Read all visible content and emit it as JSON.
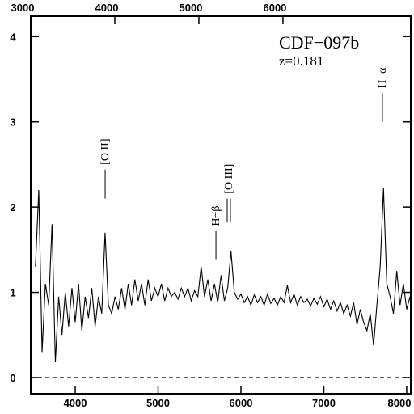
{
  "chart_data": {
    "type": "line",
    "title": "CDF−097b",
    "subtitle": "z=0.181",
    "x": [
      3520,
      3560,
      3600,
      3640,
      3680,
      3720,
      3760,
      3800,
      3840,
      3880,
      3920,
      3960,
      4000,
      4040,
      4080,
      4120,
      4160,
      4200,
      4240,
      4280,
      4320,
      4360,
      4400,
      4440,
      4480,
      4520,
      4560,
      4600,
      4640,
      4680,
      4720,
      4760,
      4800,
      4840,
      4880,
      4920,
      4960,
      5000,
      5040,
      5080,
      5120,
      5160,
      5200,
      5240,
      5280,
      5320,
      5360,
      5400,
      5440,
      5480,
      5520,
      5560,
      5600,
      5640,
      5680,
      5720,
      5760,
      5800,
      5840,
      5880,
      5920,
      5960,
      6000,
      6040,
      6080,
      6120,
      6160,
      6200,
      6240,
      6280,
      6320,
      6360,
      6400,
      6440,
      6480,
      6520,
      6560,
      6600,
      6640,
      6680,
      6720,
      6760,
      6800,
      6840,
      6880,
      6920,
      6960,
      7000,
      7040,
      7080,
      7120,
      7160,
      7200,
      7240,
      7280,
      7320,
      7360,
      7400,
      7440,
      7480,
      7520,
      7560,
      7600,
      7640,
      7680,
      7720,
      7760,
      7800,
      7840,
      7880,
      7920,
      7960,
      8000,
      8040
    ],
    "values": [
      1.3,
      2.2,
      0.3,
      1.1,
      0.85,
      1.8,
      0.18,
      0.95,
      0.5,
      1.0,
      0.6,
      1.05,
      0.65,
      1.1,
      0.55,
      0.95,
      0.7,
      1.05,
      0.6,
      0.95,
      0.75,
      1.7,
      0.85,
      0.75,
      0.95,
      0.8,
      1.05,
      0.8,
      1.1,
      0.85,
      1.15,
      0.9,
      1.1,
      0.85,
      1.15,
      0.9,
      1.05,
      0.95,
      1.1,
      0.9,
      1.05,
      0.95,
      1.0,
      0.92,
      1.05,
      0.95,
      1.05,
      0.9,
      1.02,
      0.95,
      1.3,
      0.95,
      1.15,
      0.9,
      1.1,
      0.88,
      1.2,
      0.9,
      1.05,
      1.48,
      1.0,
      0.92,
      0.98,
      0.88,
      0.95,
      0.85,
      0.97,
      0.88,
      0.95,
      0.85,
      0.98,
      0.87,
      0.93,
      0.85,
      0.95,
      0.88,
      1.08,
      0.88,
      0.98,
      0.85,
      0.95,
      0.88,
      0.92,
      0.84,
      0.93,
      0.86,
      0.95,
      0.83,
      0.92,
      0.8,
      0.9,
      0.78,
      0.88,
      0.75,
      0.85,
      0.72,
      0.88,
      0.62,
      0.8,
      0.65,
      0.55,
      0.75,
      0.38,
      0.85,
      1.3,
      2.22,
      1.1,
      0.95,
      0.75,
      1.25,
      0.85,
      1.1,
      0.8,
      0.95
    ],
    "color": "#000000",
    "xlim": [
      3463,
      8049
    ],
    "xticks": [
      4000,
      5000,
      6000,
      7000,
      8000
    ],
    "x2lim": [
      3000,
      7520
    ],
    "x2ticks": [
      3000,
      4000,
      5000,
      6000
    ],
    "ylim": [
      -0.19,
      4.24
    ],
    "yticks": [
      0,
      1,
      2,
      3,
      4
    ],
    "zero_line": 0,
    "annotations": [
      {
        "text": "[O II]",
        "x": [
          4361
        ],
        "y": [
          2.1,
          2.44
        ]
      },
      {
        "text": "H−β",
        "x": [
          5698
        ],
        "y": [
          1.39,
          1.72
        ]
      },
      {
        "text": "[O III]",
        "x": [
          5834,
          5873
        ],
        "y": [
          1.82,
          2.1
        ]
      },
      {
        "text": "H−α",
        "x": [
          7707
        ],
        "y": [
          3.0,
          3.34
        ]
      }
    ]
  }
}
